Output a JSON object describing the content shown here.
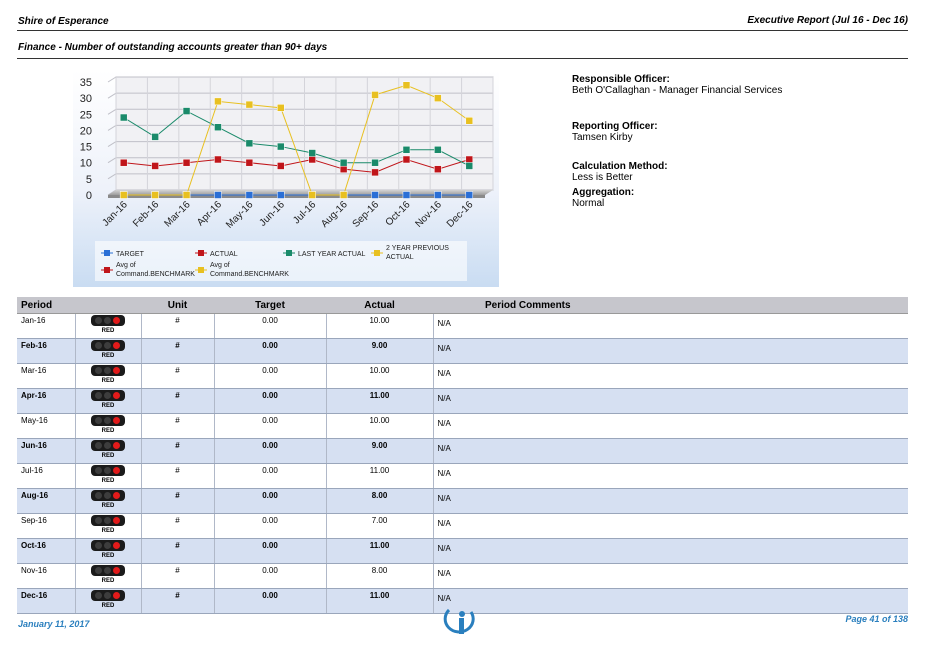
{
  "header": {
    "organisation": "Shire of Esperance",
    "report_title": "Executive Report (Jul 16 - Dec 16)",
    "subtitle": "Finance - Number of outstanding accounts greater than 90+ days"
  },
  "officers": {
    "responsible_label": "Responsible Officer:",
    "responsible_value": "Beth O'Callaghan - Manager Financial Services",
    "reporting_label": "Reporting Officer:",
    "reporting_value": "Tamsen Kirby",
    "calculation_label": "Calculation Method:",
    "calculation_value": "Less is Better",
    "aggregation_label": "Aggregation:",
    "aggregation_value": "Normal"
  },
  "chart_data": {
    "type": "line",
    "categories": [
      "Jan-16",
      "Feb-16",
      "Mar-16",
      "Apr-16",
      "May-16",
      "Jun-16",
      "Jul-16",
      "Aug-16",
      "Sep-16",
      "Oct-16",
      "Nov-16",
      "Dec-16"
    ],
    "yticks": [
      "0",
      "5",
      "10",
      "15",
      "20",
      "25",
      "30",
      "35"
    ],
    "ylim": [
      0,
      35
    ],
    "grid": true,
    "legend_placement": "bottom",
    "series": [
      {
        "name": "TARGET",
        "color": "#2a6fd6",
        "values": [
          0,
          0,
          0,
          0,
          0,
          0,
          0,
          0,
          0,
          0,
          0,
          0
        ]
      },
      {
        "name": "ACTUAL",
        "color": "#c0151a",
        "values": [
          10,
          9,
          10,
          11,
          10,
          9,
          11,
          8,
          7,
          11,
          8,
          11
        ]
      },
      {
        "name": "LAST YEAR ACTUAL",
        "color": "#1a8a6a",
        "values": [
          24,
          18,
          26,
          21,
          16,
          15,
          13,
          10,
          10,
          14,
          14,
          9
        ]
      },
      {
        "name": "2 YEAR PREVIOUS ACTUAL",
        "color": "#e8c020",
        "values": [
          0,
          0,
          0,
          29,
          28,
          27,
          0,
          0,
          31,
          34,
          30,
          23
        ]
      }
    ],
    "legend": [
      {
        "label": "TARGET",
        "color": "#2a6fd6"
      },
      {
        "label": "ACTUAL",
        "color": "#c0151a"
      },
      {
        "label": "LAST YEAR ACTUAL",
        "color": "#1a8a6a"
      },
      {
        "label": "2 YEAR PREVIOUS ACTUAL",
        "color": "#e8c020"
      },
      {
        "label": "Avg of Command.BENCHMARK",
        "color": "#c0151a"
      },
      {
        "label": "Avg of Command.BENCHMARK",
        "color": "#e8c020"
      }
    ]
  },
  "table": {
    "headers": {
      "period": "Period",
      "unit": "Unit",
      "target": "Target",
      "actual": "Actual",
      "comments": "Period Comments"
    },
    "status_label": "RED",
    "rows": [
      {
        "period": "Jan-16",
        "unit": "#",
        "target": "0.00",
        "actual": "10.00",
        "comment": "N/A"
      },
      {
        "period": "Feb-16",
        "unit": "#",
        "target": "0.00",
        "actual": "9.00",
        "comment": "N/A"
      },
      {
        "period": "Mar-16",
        "unit": "#",
        "target": "0.00",
        "actual": "10.00",
        "comment": "N/A"
      },
      {
        "period": "Apr-16",
        "unit": "#",
        "target": "0.00",
        "actual": "11.00",
        "comment": "N/A"
      },
      {
        "period": "May-16",
        "unit": "#",
        "target": "0.00",
        "actual": "10.00",
        "comment": "N/A"
      },
      {
        "period": "Jun-16",
        "unit": "#",
        "target": "0.00",
        "actual": "9.00",
        "comment": "N/A"
      },
      {
        "period": "Jul-16",
        "unit": "#",
        "target": "0.00",
        "actual": "11.00",
        "comment": "N/A"
      },
      {
        "period": "Aug-16",
        "unit": "#",
        "target": "0.00",
        "actual": "8.00",
        "comment": "N/A"
      },
      {
        "period": "Sep-16",
        "unit": "#",
        "target": "0.00",
        "actual": "7.00",
        "comment": "N/A"
      },
      {
        "period": "Oct-16",
        "unit": "#",
        "target": "0.00",
        "actual": "11.00",
        "comment": "N/A"
      },
      {
        "period": "Nov-16",
        "unit": "#",
        "target": "0.00",
        "actual": "8.00",
        "comment": "N/A"
      },
      {
        "period": "Dec-16",
        "unit": "#",
        "target": "0.00",
        "actual": "11.00",
        "comment": "N/A"
      }
    ]
  },
  "footer": {
    "date": "January 11, 2017",
    "page": "Page 41 of 138",
    "logo_icon": "info-i-logo-icon"
  }
}
